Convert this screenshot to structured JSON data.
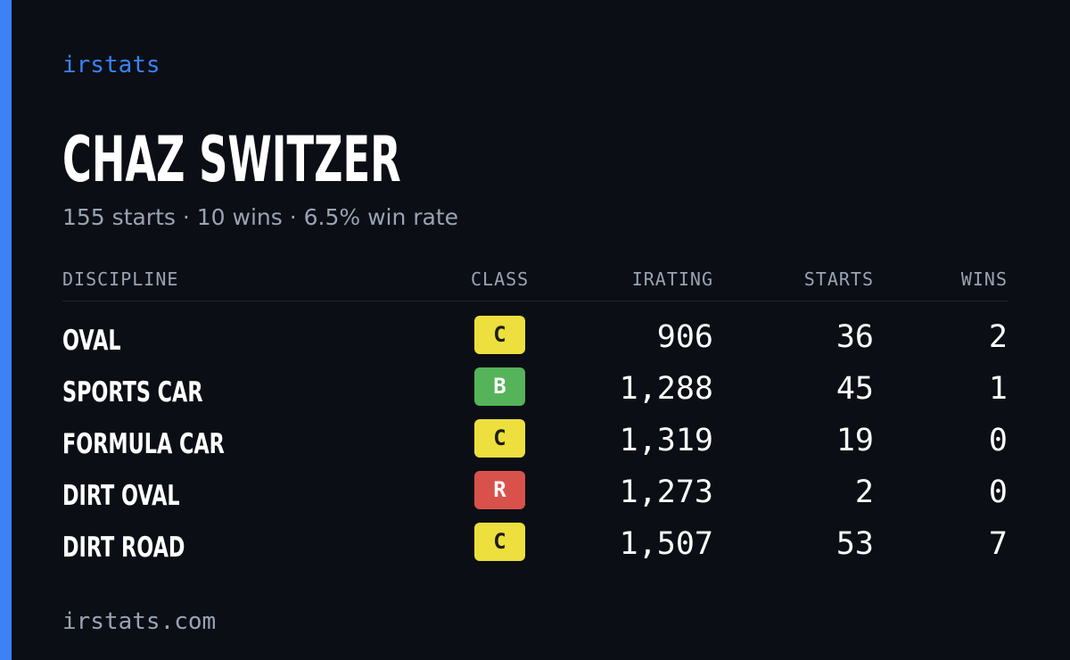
{
  "brand": "irstats",
  "driver": {
    "name": "CHAZ SWITZER",
    "summary": "155 starts · 10 wins · 6.5% win rate"
  },
  "table": {
    "headers": {
      "discipline": "DISCIPLINE",
      "class": "CLASS",
      "irating": "IRATING",
      "starts": "STARTS",
      "wins": "WINS"
    },
    "rows": [
      {
        "discipline": "OVAL",
        "class": "C",
        "irating": "906",
        "starts": "36",
        "wins": "2"
      },
      {
        "discipline": "SPORTS CAR",
        "class": "B",
        "irating": "1,288",
        "starts": "45",
        "wins": "1"
      },
      {
        "discipline": "FORMULA CAR",
        "class": "C",
        "irating": "1,319",
        "starts": "19",
        "wins": "0"
      },
      {
        "discipline": "DIRT OVAL",
        "class": "R",
        "irating": "1,273",
        "starts": "2",
        "wins": "0"
      },
      {
        "discipline": "DIRT ROAD",
        "class": "C",
        "irating": "1,507",
        "starts": "53",
        "wins": "7"
      }
    ]
  },
  "footer": "irstats.com",
  "colors": {
    "background": "#0b0e15",
    "accent": "#3b82f6",
    "class_C": "#ecdf3e",
    "class_B": "#55b35a",
    "class_R": "#d9514b"
  }
}
